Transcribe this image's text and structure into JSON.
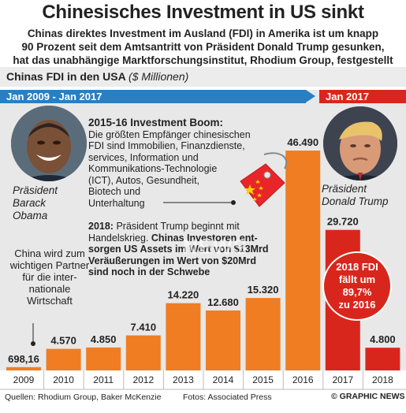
{
  "header": {
    "title": "Chinesisches Investment in US sinkt",
    "subtitle_lines": [
      "Chinas direktes Investment im Ausland (FDI) in Amerika ist um knapp",
      "90 Prozent seit dem Amtsantritt von Präsident Donald Trump gesunken,",
      "hat das unabhängige Marktforschungsinstitut, Rhodium Group, festgestellt"
    ]
  },
  "chart_data": {
    "type": "bar",
    "title": "Chinas FDI in den USA",
    "unit": "($ Millionen)",
    "categories": [
      "2009",
      "2010",
      "2011",
      "2012",
      "2013",
      "2014",
      "2015",
      "2016",
      "2017",
      "2018"
    ],
    "values": [
      698.16,
      4570,
      4850,
      7410,
      14220,
      12680,
      15320,
      46490,
      29720,
      4800
    ],
    "value_labels": [
      "698,16",
      "4.570",
      "4.850",
      "7.410",
      "14.220",
      "12.680",
      "15.320",
      "46.490",
      "29.720",
      "4.800"
    ],
    "ylim": [
      0,
      50000
    ],
    "grid": false,
    "colors": {
      "obama_era": "#f07d22",
      "trump_era": "#d9261c"
    }
  },
  "periods": {
    "obama": "Jan 2009 - Jan 2017",
    "trump": "Jan 2017",
    "obama_color": "#2a7fc1",
    "trump_color": "#d9261c"
  },
  "captions": {
    "obama": [
      "Präsident",
      "Barack",
      "Obama"
    ],
    "trump": [
      "Präsident",
      "Donald Trump"
    ]
  },
  "notes": {
    "boom_title": "2015-16 Investment Boom:",
    "boom_lines": [
      "Die größten Empfänger chinesischen",
      "FDI sind Immobilien, Finanzdienste,",
      "services, Information und",
      "Kommunikations-Technologie",
      "(ICT), Autos, Gesundheit,",
      "Biotech und",
      "Unterhaltung"
    ],
    "trade_prefix": "2018:",
    "trade_lines": [
      " Präsident Trump beginnt mit",
      "Handelskrieg. ",
      "Chinas Investoren ent-",
      "sorgen US Assets im Wert von $13Mrd",
      "Veräußerungen im Wert von $20Mrd",
      "sind noch in der Schwebe"
    ],
    "china_partner": "China wird zum wichtigen Partner für die inter- nationale Wirtschaft"
  },
  "badge": {
    "lines": [
      "2018 FDI",
      "fällt um",
      "89,7%",
      "zu 2016"
    ]
  },
  "footer": {
    "sources": "Quellen: Rhodium Group, Baker McKenzie",
    "photos": "Fotos: Associated Press",
    "credit": "© GRAPHIC NEWS"
  },
  "watermark": "NEWS"
}
